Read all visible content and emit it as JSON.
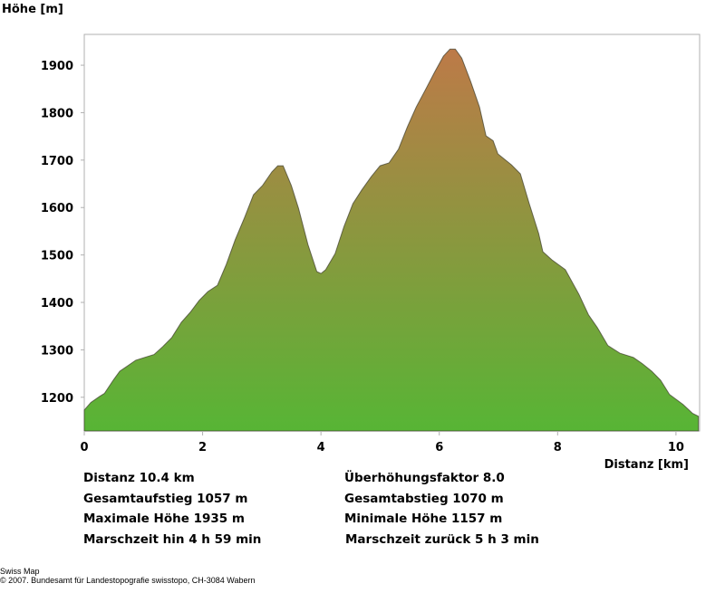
{
  "chart_data": {
    "type": "area",
    "title": "",
    "ylabel": "Höhe [m]",
    "xlabel": "Distanz [km]",
    "xlim": [
      0,
      10.4
    ],
    "ylim": [
      1129,
      1965
    ],
    "xticks": [
      0,
      2,
      4,
      6,
      8,
      10
    ],
    "yticks": [
      1200,
      1300,
      1400,
      1500,
      1600,
      1700,
      1800,
      1900
    ],
    "grid": false,
    "colors": {
      "top": "#bd7a48",
      "bottom": "#57b535",
      "outline": "#3a3a2a",
      "frame": "#b0b0b0"
    },
    "x": [
      0,
      0.11,
      0.26,
      0.34,
      0.49,
      0.6,
      0.72,
      0.87,
      1.02,
      1.18,
      1.33,
      1.48,
      1.64,
      1.79,
      1.94,
      2.09,
      2.25,
      2.4,
      2.55,
      2.71,
      2.86,
      3.01,
      3.17,
      3.27,
      3.36,
      3.5,
      3.62,
      3.78,
      3.93,
      4.0,
      4.08,
      4.24,
      4.39,
      4.54,
      4.69,
      4.85,
      5.0,
      5.15,
      5.31,
      5.46,
      5.61,
      5.76,
      5.92,
      6.07,
      6.18,
      6.27,
      6.38,
      6.53,
      6.68,
      6.79,
      6.91,
      6.99,
      7.22,
      7.37,
      7.52,
      7.68,
      7.75,
      7.9,
      8.13,
      8.36,
      8.52,
      8.67,
      8.85,
      9.05,
      9.28,
      9.43,
      9.59,
      9.74,
      9.89,
      10.12,
      10.28,
      10.38
    ],
    "y": [
      1173,
      1189,
      1202,
      1208,
      1236,
      1255,
      1265,
      1278,
      1284,
      1290,
      1307,
      1326,
      1358,
      1379,
      1404,
      1423,
      1436,
      1480,
      1532,
      1579,
      1627,
      1646,
      1675,
      1688,
      1688,
      1646,
      1599,
      1522,
      1465,
      1461,
      1469,
      1503,
      1560,
      1608,
      1637,
      1665,
      1688,
      1694,
      1723,
      1770,
      1812,
      1847,
      1885,
      1919,
      1934,
      1934,
      1915,
      1866,
      1812,
      1751,
      1741,
      1713,
      1690,
      1671,
      1608,
      1545,
      1507,
      1490,
      1469,
      1417,
      1374,
      1347,
      1309,
      1293,
      1284,
      1271,
      1255,
      1236,
      1206,
      1185,
      1166,
      1160
    ]
  },
  "stats": {
    "distance": "Distanz 10.4 km",
    "exaggeration": "Überhöhungsfaktor 8.0",
    "ascent": "Gesamtaufstieg  1057 m",
    "descent": "Gesamtabstieg  1070 m",
    "max_height": "Maximale Höhe  1935 m",
    "min_height": "Minimale Höhe  1157 m",
    "time_out": "Marschzeit hin  4 h 59 min",
    "time_back": "Marschzeit zurück  5 h 3 min"
  },
  "footer": {
    "line1": "Swiss Map",
    "line2": "© 2007. Bundesamt für Landestopografie swisstopo, CH-3084 Wabern"
  }
}
